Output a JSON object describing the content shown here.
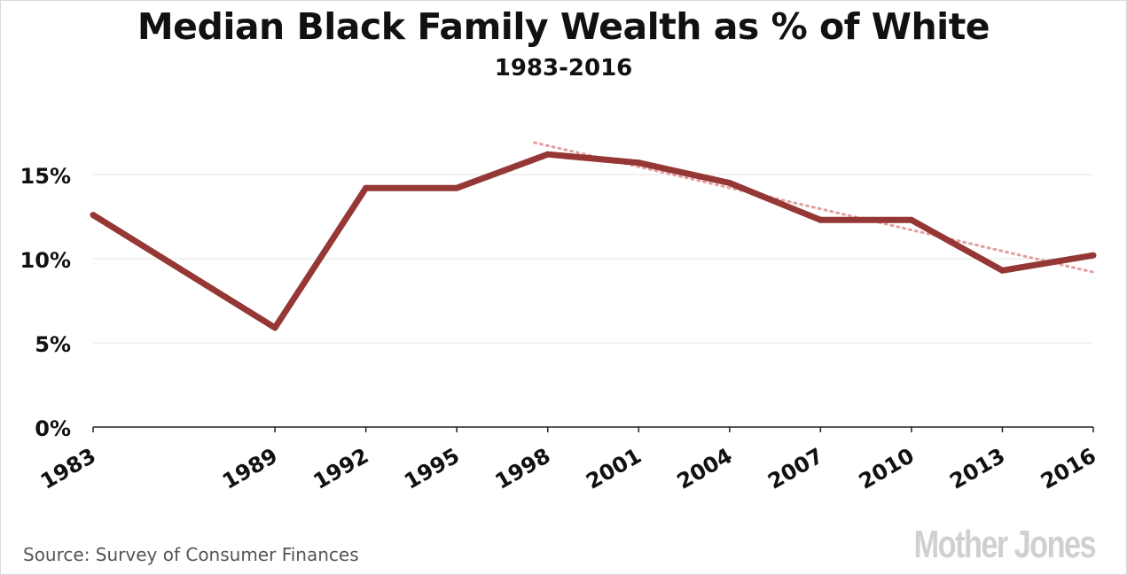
{
  "header": {
    "title": "Median Black Family Wealth as % of White",
    "subtitle": "1983-2016"
  },
  "footer": {
    "source": "Source: Survey of Consumer Finances",
    "logo": "Mother Jones"
  },
  "colors": {
    "line": "#953735",
    "trend": "#e3a0a0",
    "grid": "#e6e6e6",
    "axis": "#222222"
  },
  "chart_data": {
    "type": "line",
    "title": "Median Black Family Wealth as % of White",
    "subtitle": "1983-2016",
    "x": [
      "1983",
      "1989",
      "1992",
      "1995",
      "1998",
      "2001",
      "2004",
      "2007",
      "2010",
      "2013",
      "2016"
    ],
    "series": [
      {
        "values": [
          12.6,
          5.9,
          14.2,
          14.2,
          16.2,
          15.7,
          14.5,
          12.3,
          12.3,
          9.3,
          10.2
        ]
      }
    ],
    "trendline": {
      "style": "dotted",
      "x": [
        "1998",
        "2016"
      ],
      "values": [
        16.9,
        9.2
      ]
    },
    "yticks": [
      0,
      5,
      10,
      15
    ],
    "yticklabels": [
      "0%",
      "5%",
      "10%",
      "15%"
    ],
    "ylim": [
      0,
      18
    ],
    "xlabel": "",
    "ylabel": "",
    "grid": true,
    "legend": "none"
  }
}
